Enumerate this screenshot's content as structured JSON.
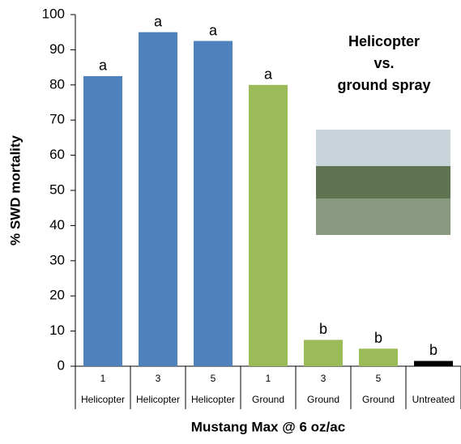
{
  "chart_data": {
    "type": "bar",
    "categories": [
      "1",
      "3",
      "5",
      "1",
      "3",
      "5",
      null
    ],
    "category_groups": [
      "Helicopter",
      "Helicopter",
      "Helicopter",
      "Ground",
      "Ground",
      "Ground",
      "Untreated"
    ],
    "values": [
      82.5,
      95,
      92.5,
      80,
      7.5,
      5,
      1.5
    ],
    "significance_letters": [
      "a",
      "a",
      "a",
      "a",
      "b",
      "b",
      "b"
    ],
    "colors": [
      "#4f81bd",
      "#4f81bd",
      "#4f81bd",
      "#9bbb59",
      "#9bbb59",
      "#9bbb59",
      "#000000"
    ],
    "ylim": [
      0,
      100
    ],
    "yticks": [
      0,
      10,
      20,
      30,
      40,
      50,
      60,
      70,
      80,
      90,
      100
    ],
    "y_label": "% SWD mortality",
    "x_label": "Mustang Max @ 6 oz/ac",
    "annotation": [
      "Helicopter",
      "vs.",
      "ground spray"
    ]
  }
}
